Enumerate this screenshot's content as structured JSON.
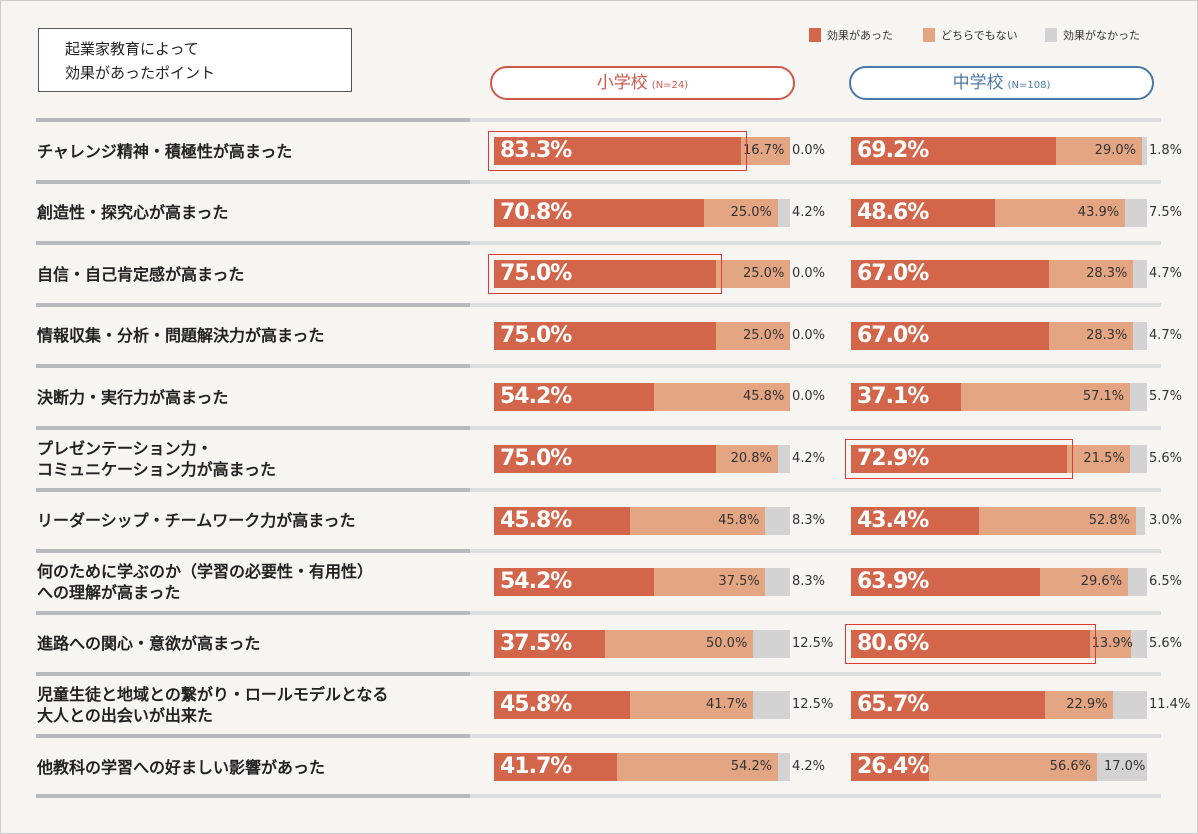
{
  "title_lines": [
    "起業家教育によって",
    "効果があったポイント"
  ],
  "colors": {
    "effective": "#d2654a",
    "neutral": "#e4a582",
    "not_effective": "#d3d3d3",
    "elementary": "#d0584a",
    "junior_high": "#4a78a8"
  },
  "chart_data": {
    "type": "bar",
    "stacked": true,
    "orientation": "horizontal",
    "legend": {
      "position": "top-right",
      "entries": [
        "効果があった",
        "どちらでもない",
        "効果がなかった"
      ]
    },
    "panels": [
      {
        "name": "小学校",
        "n": "(N=24)"
      },
      {
        "name": "中学校",
        "n": "(N=108)"
      }
    ],
    "categories": [
      "チャレンジ精神・積極性が高まった",
      "創造性・探究心が高まった",
      "自信・自己肯定感が高まった",
      "情報収集・分析・問題解決力が高まった",
      "決断力・実行力が高まった",
      "プレゼンテーション力・\nコミュニケーション力が高まった",
      "リーダーシップ・チームワーク力が高まった",
      "何のために学ぶのか（学習の必要性・有用性）\nへの理解が高まった",
      "進路への関心・意欲が高まった",
      "児童生徒と地域との繋がり・ロールモデルとなる\n大人との出会いが出来た",
      "他教科の学習への好ましい影響があった"
    ],
    "series": {
      "小学校": [
        [
          83.3,
          16.7,
          0.0
        ],
        [
          70.8,
          25.0,
          4.2
        ],
        [
          75.0,
          25.0,
          0.0
        ],
        [
          75.0,
          25.0,
          0.0
        ],
        [
          54.2,
          45.8,
          0.0
        ],
        [
          75.0,
          20.8,
          4.2
        ],
        [
          45.8,
          45.8,
          8.3
        ],
        [
          54.2,
          37.5,
          8.3
        ],
        [
          37.5,
          50.0,
          12.5
        ],
        [
          45.8,
          41.7,
          12.5
        ],
        [
          41.7,
          54.2,
          4.2
        ]
      ],
      "中学校": [
        [
          69.2,
          29.0,
          1.8
        ],
        [
          48.6,
          43.9,
          7.5
        ],
        [
          67.0,
          28.3,
          4.7
        ],
        [
          67.0,
          28.3,
          4.7
        ],
        [
          37.1,
          57.1,
          5.7
        ],
        [
          72.9,
          21.5,
          5.6
        ],
        [
          43.4,
          52.8,
          3.0
        ],
        [
          63.9,
          29.6,
          6.5
        ],
        [
          80.6,
          13.9,
          5.6
        ],
        [
          65.7,
          22.9,
          11.4
        ],
        [
          26.4,
          56.6,
          17.0
        ]
      ]
    },
    "highlighted": [
      {
        "panel": "小学校",
        "row": 0
      },
      {
        "panel": "小学校",
        "row": 2
      },
      {
        "panel": "中学校",
        "row": 5
      },
      {
        "panel": "中学校",
        "row": 8
      }
    ],
    "unit": "%",
    "xlim": [
      0,
      100
    ]
  }
}
